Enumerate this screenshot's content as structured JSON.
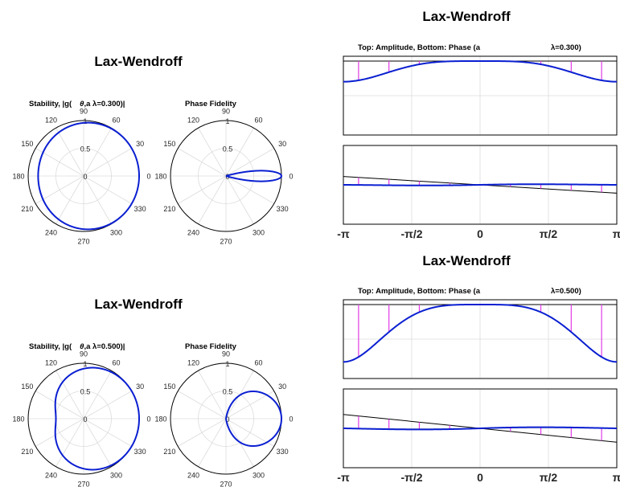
{
  "colors": {
    "numeric": "#0a1fd1",
    "exact": "#000000",
    "error_bar": "#e23ce6",
    "grid": "#dcdcdc"
  },
  "chart_data": [
    {
      "id": "A",
      "type": "polar",
      "title": "Lax-Wendroff",
      "subtitle": "Stability, |g(",
      "subtitle_theta": "θ",
      "subtitle_rest": ",a λ=0.300)|",
      "lambda": 0.3,
      "angle_labels": [
        "0",
        "30",
        "60",
        "90",
        "120",
        "150",
        "180",
        "210",
        "240",
        "270",
        "300",
        "330"
      ],
      "r_labels": [
        "0",
        "0.5",
        "1"
      ],
      "rlim": [
        0,
        1
      ],
      "curve": "amplification",
      "grid": true
    },
    {
      "id": "B",
      "type": "polar",
      "subtitle": "Phase Fidelity",
      "lambda": 0.3,
      "angle_labels": [
        "0",
        "30",
        "60",
        "90",
        "120",
        "150",
        "180",
        "210",
        "240",
        "270",
        "300",
        "330"
      ],
      "r_labels": [
        "0",
        "0.5",
        "1"
      ],
      "rlim": [
        0,
        1
      ],
      "curve": "phase_ratio",
      "grid": true
    },
    {
      "id": "C",
      "type": "line",
      "title": "Lax-Wendroff",
      "subtitle_left": "Top: Amplitude, Bottom: Phase (a",
      "subtitle_right": "λ=0.300)",
      "lambda": 0.3,
      "xlim": [
        -3.14159,
        3.14159
      ],
      "xticks": [
        "-π",
        "-π/2",
        "0",
        "π/2",
        "π"
      ],
      "panels": [
        "amplitude",
        "phase"
      ],
      "grid": true
    },
    {
      "id": "D",
      "type": "polar",
      "title": "Lax-Wendroff",
      "subtitle": "Stability, |g(",
      "subtitle_theta": "θ",
      "subtitle_rest": ",a λ=0.500)|",
      "lambda": 0.5,
      "angle_labels": [
        "0",
        "30",
        "60",
        "90",
        "120",
        "150",
        "180",
        "210",
        "240",
        "270",
        "300",
        "330"
      ],
      "r_labels": [
        "0",
        "0.5",
        "1"
      ],
      "rlim": [
        0,
        1
      ],
      "curve": "amplification",
      "grid": true
    },
    {
      "id": "E",
      "type": "polar",
      "subtitle": "Phase Fidelity",
      "lambda": 0.5,
      "angle_labels": [
        "0",
        "30",
        "60",
        "90",
        "120",
        "150",
        "180",
        "210",
        "240",
        "270",
        "300",
        "330"
      ],
      "r_labels": [
        "0",
        "0.5",
        "1"
      ],
      "rlim": [
        0,
        1
      ],
      "curve": "phase_ratio",
      "grid": true
    },
    {
      "id": "F",
      "type": "line",
      "title": "Lax-Wendroff",
      "subtitle_left": "Top: Amplitude, Bottom: Phase (a",
      "subtitle_right": "λ=0.500)",
      "lambda": 0.5,
      "xlim": [
        -3.14159,
        3.14159
      ],
      "xticks": [
        "-π",
        "-π/2",
        "0",
        "π/2",
        "π"
      ],
      "panels": [
        "amplitude",
        "phase"
      ],
      "grid": true
    }
  ]
}
